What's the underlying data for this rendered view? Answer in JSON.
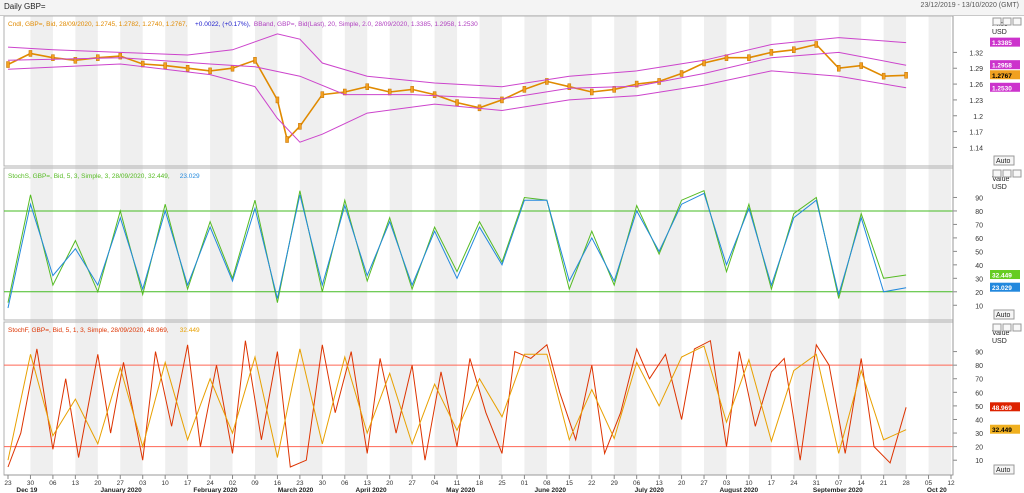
{
  "window": {
    "title": "Daily GBP=",
    "range": "23/12/2019 - 13/10/2020 (GMT)"
  },
  "panels": [
    {
      "id": "price",
      "legend": [
        {
          "text": "Cndl, GBP=, Bid, 28/09/2020, 1.2745, 1.2782, 1.2740, 1.2767,",
          "color": "#e08a00"
        },
        {
          "text": "+0.0022, (+0.17%),",
          "color": "#1a1acc"
        },
        {
          "text": "BBand, GBP=, Bid(Last), 20, Simple, 2.0, 28/09/2020, 1.3385, 1.2958, 1.2530",
          "color": "#b040c0"
        }
      ],
      "axis_title": [
        "Price",
        "USD"
      ],
      "badges": [
        {
          "label": "1.3385",
          "value": 1.3385,
          "bg": "#cc33cc",
          "fg": "#ffffff"
        },
        {
          "label": "1.2958",
          "value": 1.2958,
          "bg": "#cc33cc",
          "fg": "#ffffff"
        },
        {
          "label": "1.2767",
          "value": 1.2767,
          "bg": "#f0a020",
          "fg": "#000000"
        },
        {
          "label": "1.2530",
          "value": 1.253,
          "bg": "#cc33cc",
          "fg": "#ffffff"
        }
      ],
      "auto_label": "Auto"
    },
    {
      "id": "stochs",
      "legend": [
        {
          "text": "StochS, GBP=, Bid, 5, 3, Simple, 3, 28/09/2020, 32.449,",
          "color": "#55bb22"
        },
        {
          "text": "23.029",
          "color": "#2288dd"
        }
      ],
      "axis_title": [
        "Value",
        "USD"
      ],
      "badges": [
        {
          "label": "32.449",
          "value": 32.449,
          "bg": "#66cc22",
          "fg": "#ffffff"
        },
        {
          "label": "23.029",
          "value": 23.029,
          "bg": "#2288dd",
          "fg": "#ffffff"
        }
      ],
      "auto_label": "Auto"
    },
    {
      "id": "stochf",
      "legend": [
        {
          "text": "StochF, GBP=, Bid, 5, 1, 3, Simple, 28/09/2020, 48.969,",
          "color": "#dd3300"
        },
        {
          "text": "32.449",
          "color": "#e8a000"
        }
      ],
      "axis_title": [
        "Value",
        "USD"
      ],
      "badges": [
        {
          "label": "48.969",
          "value": 48.969,
          "bg": "#dd2200",
          "fg": "#ffffff"
        },
        {
          "label": "32.449",
          "value": 32.449,
          "bg": "#f0b020",
          "fg": "#000000"
        }
      ],
      "auto_label": "Auto"
    }
  ],
  "x_axis": {
    "day_ticks": [
      "23",
      "30",
      "06",
      "13",
      "20",
      "27",
      "03",
      "10",
      "17",
      "24",
      "02",
      "09",
      "16",
      "23",
      "30",
      "06",
      "13",
      "20",
      "27",
      "04",
      "11",
      "18",
      "25",
      "01",
      "08",
      "15",
      "22",
      "29",
      "06",
      "13",
      "20",
      "27",
      "03",
      "10",
      "17",
      "24",
      "31",
      "07",
      "14",
      "21",
      "28",
      "05",
      "12"
    ],
    "month_labels": [
      "Dec 19",
      "January 2020",
      "February 2020",
      "March 2020",
      "April 2020",
      "May 2020",
      "June 2020",
      "July 2020",
      "August 2020",
      "September 2020",
      "Oct 20"
    ]
  },
  "chart_data": [
    {
      "type": "line",
      "title": "Cndl, GBP=, Bid, 28/09/2020, 1.2745, 1.2782, 1.2740, 1.2767",
      "ylabel": "Price",
      "ylim": [
        1.12,
        1.37
      ],
      "yticks": [
        1.14,
        1.17,
        1.2,
        1.23,
        1.26,
        1.29,
        1.32
      ],
      "x_range": [
        "2019-12-23",
        "2020-10-12"
      ],
      "series": [
        {
          "name": "Cndl, GBP=, Bid",
          "dates": [
            "2019-12-23",
            "2019-12-30",
            "2020-01-06",
            "2020-01-13",
            "2020-01-20",
            "2020-01-27",
            "2020-02-03",
            "2020-02-10",
            "2020-02-17",
            "2020-02-24",
            "2020-03-02",
            "2020-03-09",
            "2020-03-16",
            "2020-03-19",
            "2020-03-23",
            "2020-03-30",
            "2020-04-06",
            "2020-04-13",
            "2020-04-20",
            "2020-04-27",
            "2020-05-04",
            "2020-05-11",
            "2020-05-18",
            "2020-05-25",
            "2020-06-01",
            "2020-06-08",
            "2020-06-15",
            "2020-06-22",
            "2020-06-29",
            "2020-07-06",
            "2020-07-13",
            "2020-07-20",
            "2020-07-27",
            "2020-08-03",
            "2020-08-10",
            "2020-08-17",
            "2020-08-24",
            "2020-08-31",
            "2020-09-07",
            "2020-09-14",
            "2020-09-21",
            "2020-09-28"
          ],
          "values": [
            1.297,
            1.318,
            1.31,
            1.305,
            1.31,
            1.313,
            1.298,
            1.295,
            1.29,
            1.285,
            1.29,
            1.305,
            1.23,
            1.155,
            1.18,
            1.24,
            1.245,
            1.255,
            1.245,
            1.25,
            1.24,
            1.225,
            1.215,
            1.23,
            1.25,
            1.265,
            1.255,
            1.245,
            1.25,
            1.26,
            1.265,
            1.28,
            1.3,
            1.31,
            1.31,
            1.32,
            1.325,
            1.335,
            1.29,
            1.295,
            1.275,
            1.2767
          ]
        },
        {
          "name": "BBand upper",
          "dates": [
            "2019-12-23",
            "2020-01-06",
            "2020-01-27",
            "2020-02-17",
            "2020-03-02",
            "2020-03-09",
            "2020-03-16",
            "2020-03-23",
            "2020-03-30",
            "2020-04-13",
            "2020-05-04",
            "2020-05-25",
            "2020-06-15",
            "2020-07-06",
            "2020-07-27",
            "2020-08-17",
            "2020-09-07",
            "2020-09-28"
          ],
          "values": [
            1.33,
            1.325,
            1.32,
            1.315,
            1.325,
            1.34,
            1.355,
            1.345,
            1.3,
            1.275,
            1.262,
            1.255,
            1.275,
            1.285,
            1.305,
            1.335,
            1.348,
            1.3385
          ]
        },
        {
          "name": "BBand middle",
          "dates": [
            "2019-12-23",
            "2020-01-27",
            "2020-02-24",
            "2020-03-09",
            "2020-03-23",
            "2020-04-06",
            "2020-04-27",
            "2020-05-25",
            "2020-06-15",
            "2020-07-06",
            "2020-07-27",
            "2020-08-17",
            "2020-09-07",
            "2020-09-28"
          ],
          "values": [
            1.305,
            1.31,
            1.298,
            1.293,
            1.275,
            1.24,
            1.24,
            1.232,
            1.252,
            1.256,
            1.28,
            1.31,
            1.32,
            1.2958
          ]
        },
        {
          "name": "BBand lower",
          "dates": [
            "2019-12-23",
            "2020-01-27",
            "2020-02-24",
            "2020-03-09",
            "2020-03-16",
            "2020-03-23",
            "2020-03-30",
            "2020-04-13",
            "2020-05-04",
            "2020-05-25",
            "2020-06-15",
            "2020-07-06",
            "2020-07-27",
            "2020-08-17",
            "2020-09-07",
            "2020-09-28"
          ],
          "values": [
            1.288,
            1.298,
            1.278,
            1.255,
            1.195,
            1.15,
            1.165,
            1.205,
            1.222,
            1.21,
            1.23,
            1.238,
            1.258,
            1.285,
            1.275,
            1.253
          ]
        }
      ]
    },
    {
      "type": "line",
      "title": "StochS, GBP=, Bid, 5, 3, Simple, 3, 28/09/2020, 32.449, 23.029",
      "ylabel": "Value",
      "ylim": [
        5,
        100
      ],
      "yticks": [
        10,
        20,
        30,
        40,
        50,
        60,
        70,
        80,
        90
      ],
      "hlines": [
        20,
        80
      ],
      "x_range": [
        "2019-12-23",
        "2020-10-12"
      ],
      "series": [
        {
          "name": "StochS %K",
          "dates": [
            "2019-12-23",
            "2019-12-30",
            "2020-01-06",
            "2020-01-13",
            "2020-01-20",
            "2020-01-27",
            "2020-02-03",
            "2020-02-10",
            "2020-02-17",
            "2020-02-24",
            "2020-03-02",
            "2020-03-09",
            "2020-03-16",
            "2020-03-23",
            "2020-03-30",
            "2020-04-06",
            "2020-04-13",
            "2020-04-20",
            "2020-04-27",
            "2020-05-04",
            "2020-05-11",
            "2020-05-18",
            "2020-05-25",
            "2020-06-01",
            "2020-06-08",
            "2020-06-15",
            "2020-06-22",
            "2020-06-29",
            "2020-07-06",
            "2020-07-13",
            "2020-07-20",
            "2020-07-27",
            "2020-08-03",
            "2020-08-10",
            "2020-08-17",
            "2020-08-24",
            "2020-08-31",
            "2020-09-07",
            "2020-09-14",
            "2020-09-21",
            "2020-09-28"
          ],
          "values": [
            12,
            92,
            25,
            58,
            20,
            80,
            18,
            85,
            22,
            72,
            30,
            88,
            12,
            95,
            20,
            88,
            28,
            75,
            22,
            68,
            35,
            72,
            42,
            90,
            88,
            22,
            65,
            25,
            84,
            48,
            88,
            95,
            35,
            85,
            22,
            78,
            90,
            15,
            78,
            30,
            32.449
          ]
        },
        {
          "name": "StochS %D",
          "dates": [
            "2019-12-23",
            "2019-12-30",
            "2020-01-06",
            "2020-01-13",
            "2020-01-20",
            "2020-01-27",
            "2020-02-03",
            "2020-02-10",
            "2020-02-17",
            "2020-02-24",
            "2020-03-02",
            "2020-03-09",
            "2020-03-16",
            "2020-03-23",
            "2020-03-30",
            "2020-04-06",
            "2020-04-13",
            "2020-04-20",
            "2020-04-27",
            "2020-05-04",
            "2020-05-11",
            "2020-05-18",
            "2020-05-25",
            "2020-06-01",
            "2020-06-08",
            "2020-06-15",
            "2020-06-22",
            "2020-06-29",
            "2020-07-06",
            "2020-07-13",
            "2020-07-20",
            "2020-07-27",
            "2020-08-03",
            "2020-08-10",
            "2020-08-17",
            "2020-08-24",
            "2020-08-31",
            "2020-09-07",
            "2020-09-14",
            "2020-09-21",
            "2020-09-28"
          ],
          "values": [
            8,
            85,
            32,
            52,
            25,
            75,
            22,
            80,
            25,
            68,
            28,
            82,
            15,
            92,
            25,
            84,
            32,
            72,
            25,
            65,
            30,
            68,
            40,
            88,
            88,
            28,
            60,
            28,
            80,
            50,
            85,
            93,
            40,
            82,
            25,
            75,
            88,
            18,
            75,
            20,
            23.029
          ]
        }
      ]
    },
    {
      "type": "line",
      "title": "StochF, GBP=, Bid, 5, 1, 3, Simple, 28/09/2020, 48.969, 32.449",
      "ylabel": "Value",
      "ylim": [
        5,
        100
      ],
      "yticks": [
        10,
        20,
        30,
        40,
        50,
        60,
        70,
        80,
        90
      ],
      "hlines": [
        20,
        80
      ],
      "x_range": [
        "2019-12-23",
        "2020-10-12"
      ],
      "series": [
        {
          "name": "StochF %K",
          "dates": [
            "2019-12-23",
            "2019-12-27",
            "2020-01-01",
            "2020-01-06",
            "2020-01-10",
            "2020-01-14",
            "2020-01-20",
            "2020-01-24",
            "2020-01-28",
            "2020-02-03",
            "2020-02-07",
            "2020-02-12",
            "2020-02-17",
            "2020-02-21",
            "2020-02-26",
            "2020-03-02",
            "2020-03-06",
            "2020-03-11",
            "2020-03-16",
            "2020-03-20",
            "2020-03-25",
            "2020-03-30",
            "2020-04-03",
            "2020-04-08",
            "2020-04-13",
            "2020-04-17",
            "2020-04-22",
            "2020-04-27",
            "2020-05-01",
            "2020-05-06",
            "2020-05-11",
            "2020-05-15",
            "2020-05-20",
            "2020-05-25",
            "2020-05-29",
            "2020-06-03",
            "2020-06-08",
            "2020-06-12",
            "2020-06-17",
            "2020-06-22",
            "2020-06-26",
            "2020-07-01",
            "2020-07-06",
            "2020-07-10",
            "2020-07-15",
            "2020-07-20",
            "2020-07-24",
            "2020-07-29",
            "2020-08-03",
            "2020-08-07",
            "2020-08-12",
            "2020-08-17",
            "2020-08-21",
            "2020-08-26",
            "2020-08-31",
            "2020-09-04",
            "2020-09-09",
            "2020-09-14",
            "2020-09-18",
            "2020-09-23",
            "2020-09-28"
          ],
          "values": [
            5,
            30,
            92,
            18,
            70,
            12,
            88,
            30,
            82,
            10,
            90,
            35,
            95,
            20,
            80,
            15,
            98,
            25,
            90,
            5,
            10,
            95,
            45,
            90,
            15,
            85,
            30,
            80,
            10,
            75,
            20,
            85,
            45,
            15,
            90,
            85,
            95,
            60,
            25,
            80,
            15,
            45,
            92,
            70,
            88,
            40,
            92,
            98,
            20,
            90,
            35,
            75,
            85,
            10,
            95,
            80,
            15,
            85,
            20,
            8,
            48.969
          ]
        },
        {
          "name": "StochF %D",
          "dates": [
            "2019-12-23",
            "2019-12-30",
            "2020-01-06",
            "2020-01-13",
            "2020-01-20",
            "2020-01-27",
            "2020-02-03",
            "2020-02-10",
            "2020-02-17",
            "2020-02-24",
            "2020-03-02",
            "2020-03-09",
            "2020-03-16",
            "2020-03-23",
            "2020-03-30",
            "2020-04-06",
            "2020-04-13",
            "2020-04-20",
            "2020-04-27",
            "2020-05-04",
            "2020-05-11",
            "2020-05-18",
            "2020-05-25",
            "2020-06-01",
            "2020-06-08",
            "2020-06-15",
            "2020-06-22",
            "2020-06-29",
            "2020-07-06",
            "2020-07-13",
            "2020-07-20",
            "2020-07-27",
            "2020-08-03",
            "2020-08-10",
            "2020-08-17",
            "2020-08-24",
            "2020-08-31",
            "2020-09-07",
            "2020-09-14",
            "2020-09-21",
            "2020-09-28"
          ],
          "values": [
            10,
            88,
            28,
            55,
            22,
            78,
            20,
            82,
            25,
            70,
            30,
            86,
            12,
            92,
            22,
            86,
            30,
            74,
            22,
            66,
            32,
            70,
            42,
            88,
            88,
            25,
            62,
            26,
            82,
            50,
            86,
            94,
            38,
            84,
            24,
            76,
            88,
            15,
            76,
            25,
            32.449
          ]
        }
      ]
    }
  ]
}
